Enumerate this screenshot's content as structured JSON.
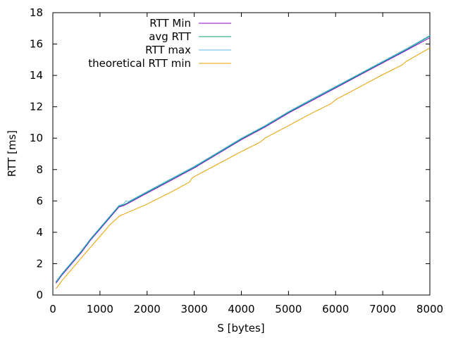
{
  "chart_data": {
    "type": "line",
    "title": "",
    "xlabel": "S [bytes]",
    "ylabel": "RTT [ms]",
    "xlim": [
      0,
      8000
    ],
    "ylim": [
      0,
      18
    ],
    "xticks": [
      0,
      1000,
      2000,
      3000,
      4000,
      5000,
      6000,
      7000,
      8000
    ],
    "yticks": [
      0,
      2,
      4,
      6,
      8,
      10,
      12,
      14,
      16,
      18
    ],
    "grid": false,
    "legend_position": "top-left",
    "series": [
      {
        "name": "RTT Min",
        "color": "#9400d3",
        "x": [
          64,
          200,
          400,
          600,
          800,
          1000,
          1200,
          1400,
          1500,
          1600,
          2000,
          2500,
          3000,
          3500,
          4000,
          4500,
          5000,
          5500,
          6000,
          6500,
          7000,
          7500,
          8000
        ],
        "y": [
          0.75,
          1.3,
          2.0,
          2.7,
          3.5,
          4.2,
          4.9,
          5.6,
          5.7,
          5.85,
          6.5,
          7.3,
          8.1,
          9.0,
          9.9,
          10.7,
          11.6,
          12.4,
          13.2,
          14.0,
          14.8,
          15.6,
          16.4
        ]
      },
      {
        "name": "avg RTT",
        "color": "#009e73",
        "x": [
          64,
          200,
          400,
          600,
          800,
          1000,
          1200,
          1400,
          1500,
          1600,
          2000,
          2500,
          3000,
          3500,
          4000,
          4500,
          5000,
          5500,
          6000,
          6500,
          7000,
          7500,
          8000
        ],
        "y": [
          0.8,
          1.35,
          2.05,
          2.75,
          3.55,
          4.25,
          4.95,
          5.65,
          5.75,
          5.9,
          6.55,
          7.35,
          8.15,
          9.05,
          9.95,
          10.75,
          11.65,
          12.45,
          13.25,
          14.05,
          14.85,
          15.65,
          16.5
        ]
      },
      {
        "name": "RTT max",
        "color": "#56b4e9",
        "x": [
          64,
          200,
          400,
          600,
          800,
          1000,
          1200,
          1400,
          1500,
          1550,
          1600,
          2000,
          2500,
          3000,
          3500,
          4000,
          4500,
          5000,
          5500,
          6000,
          6500,
          7000,
          7500,
          8000
        ],
        "y": [
          0.85,
          1.4,
          2.1,
          2.8,
          3.6,
          4.3,
          5.0,
          5.7,
          5.8,
          6.0,
          5.95,
          6.6,
          7.4,
          8.2,
          9.1,
          10.0,
          10.8,
          11.7,
          12.5,
          13.3,
          14.1,
          14.9,
          15.7,
          16.55
        ]
      },
      {
        "name": "theoretical RTT min",
        "color": "#e69f00",
        "x": [
          64,
          200,
          400,
          600,
          800,
          1000,
          1200,
          1400,
          1450,
          1500,
          2000,
          2500,
          2900,
          2950,
          3000,
          3500,
          4000,
          4400,
          4500,
          5000,
          5500,
          5900,
          6000,
          6500,
          7000,
          7400,
          7500,
          8000
        ],
        "y": [
          0.4,
          0.95,
          1.65,
          2.35,
          3.05,
          3.75,
          4.45,
          5.0,
          5.1,
          5.15,
          5.8,
          6.55,
          7.2,
          7.45,
          7.55,
          8.35,
          9.15,
          9.75,
          10.0,
          10.8,
          11.6,
          12.2,
          12.45,
          13.25,
          14.05,
          14.65,
          14.9,
          15.75
        ]
      }
    ]
  }
}
